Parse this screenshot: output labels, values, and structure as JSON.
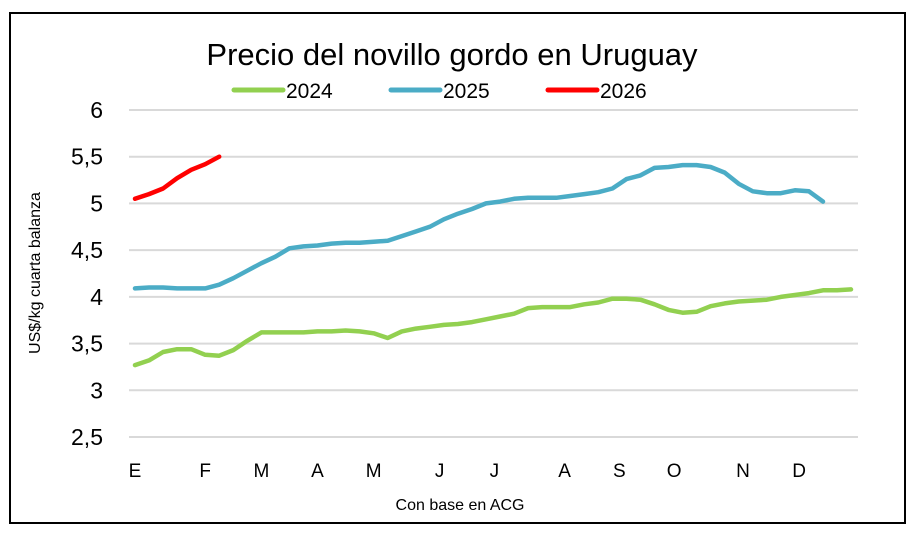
{
  "chart_data": {
    "type": "line",
    "title": "Precio del novillo gordo en Uruguay",
    "xlabel": "Con base en ACG",
    "ylabel": "US$/kg cuarta balanza",
    "ylim": [
      2.5,
      6
    ],
    "yticks": [
      2.5,
      3,
      3.5,
      4,
      4.5,
      5,
      5.5,
      6
    ],
    "ytick_labels": [
      "2,5",
      "3",
      "3,5",
      "4",
      "4,5",
      "5",
      "5,5",
      "6"
    ],
    "x_unit": "week",
    "x_points": 52,
    "month_labels": [
      {
        "label": "E",
        "week": 0
      },
      {
        "label": "F",
        "week": 5
      },
      {
        "label": "M",
        "week": 9
      },
      {
        "label": "A",
        "week": 13
      },
      {
        "label": "M",
        "week": 17
      },
      {
        "label": "J",
        "week": 21.7
      },
      {
        "label": "J",
        "week": 25.6
      },
      {
        "label": "A",
        "week": 30.6
      },
      {
        "label": "S",
        "week": 34.5
      },
      {
        "label": "O",
        "week": 38.4
      },
      {
        "label": "N",
        "week": 43.3
      },
      {
        "label": "D",
        "week": 47.3
      }
    ],
    "grid": true,
    "legend_position": "top",
    "series": [
      {
        "name": "2024",
        "color": "#92D050",
        "values": [
          3.27,
          3.32,
          3.41,
          3.44,
          3.44,
          3.38,
          3.37,
          3.43,
          3.53,
          3.62,
          3.62,
          3.62,
          3.62,
          3.63,
          3.63,
          3.64,
          3.63,
          3.61,
          3.56,
          3.63,
          3.66,
          3.68,
          3.7,
          3.71,
          3.73,
          3.76,
          3.79,
          3.82,
          3.88,
          3.89,
          3.89,
          3.89,
          3.92,
          3.94,
          3.98,
          3.98,
          3.97,
          3.92,
          3.86,
          3.83,
          3.84,
          3.9,
          3.93,
          3.95,
          3.96,
          3.97,
          4.0,
          4.02,
          4.04,
          4.07,
          4.07,
          4.08
        ]
      },
      {
        "name": "2025",
        "color": "#4BACC6",
        "values": [
          4.09,
          4.1,
          4.1,
          4.09,
          4.09,
          4.09,
          4.13,
          4.2,
          4.28,
          4.36,
          4.43,
          4.52,
          4.54,
          4.55,
          4.57,
          4.58,
          4.58,
          4.59,
          4.6,
          4.65,
          4.7,
          4.75,
          4.83,
          4.89,
          4.94,
          5.0,
          5.02,
          5.05,
          5.06,
          5.06,
          5.06,
          5.08,
          5.1,
          5.12,
          5.16,
          5.26,
          5.3,
          5.38,
          5.39,
          5.41,
          5.41,
          5.39,
          5.33,
          5.21,
          5.13,
          5.11,
          5.11,
          5.14,
          5.13,
          5.02
        ]
      },
      {
        "name": "2026",
        "color": "#FF0000",
        "values": [
          5.05,
          5.1,
          5.16,
          5.27,
          5.36,
          5.42,
          5.5
        ]
      }
    ]
  }
}
